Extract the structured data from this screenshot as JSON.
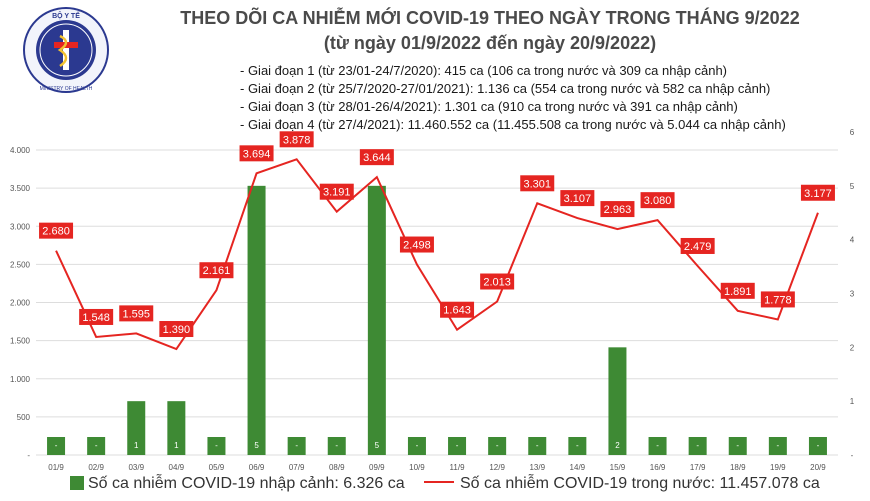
{
  "header": {
    "title": "THEO DÕI CA NHIỄM MỚI COVID-19 THEO NGÀY TRONG THÁNG 9/2022",
    "subtitle": "(từ ngày 01/9/2022 đến ngày 20/9/2022)",
    "phases": [
      "- Giai đoạn 1 (từ 23/01-24/7/2020): 415 ca (106 ca trong nước và 309 ca nhập cảnh)",
      "- Giai đoạn 2 (từ 25/7/2020-27/01/2021): 1.136 ca (554 ca trong nước và 582 ca nhập cảnh)",
      "- Giai đoạn 3 (từ 28/01-26/4/2021): 1.301 ca (910 ca trong nước và 391 ca nhập cảnh)",
      "- Giai đoạn 4 (từ 27/4/2021): 11.460.552 ca (11.455.508 ca trong nước và 5.044 ca nhập cảnh)"
    ]
  },
  "logo": {
    "top_text": "BỘ Y TẾ",
    "bottom_text": "MINISTRY OF HEALTH"
  },
  "legend": {
    "bar_label": "Số ca nhiễm COVID-19 nhập cảnh: 6.326 ca",
    "line_label": "Số ca nhiễm COVID-19 trong nước: 11.457.078 ca"
  },
  "colors": {
    "bar": "#3e8a34",
    "line": "#e52521",
    "label_bg": "#e52521",
    "grid": "#dddddd",
    "axis_text": "#555555"
  },
  "chart_data": {
    "type": "bar+line",
    "categories": [
      "01/9",
      "02/9",
      "03/9",
      "04/9",
      "05/9",
      "06/9",
      "07/9",
      "08/9",
      "09/9",
      "10/9",
      "11/9",
      "12/9",
      "13/9",
      "14/9",
      "15/9",
      "16/9",
      "17/9",
      "18/9",
      "19/9",
      "20/9"
    ],
    "series": [
      {
        "name": "Số ca nhiễm COVID-19 nhập cảnh: 6.326 ca",
        "type": "bar",
        "axis": "right",
        "values": [
          0,
          0,
          1,
          1,
          0,
          5,
          0,
          0,
          5,
          0,
          0,
          0,
          0,
          0,
          2,
          0,
          0,
          0,
          0,
          0
        ],
        "labels": [
          "-",
          "-",
          "1",
          "1",
          "-",
          "5",
          "-",
          "-",
          "5",
          "-",
          "-",
          "-",
          "-",
          "-",
          "2",
          "-",
          "-",
          "-",
          "-",
          "-"
        ]
      },
      {
        "name": "Số ca nhiễm COVID-19 trong nước: 11.457.078 ca",
        "type": "line",
        "axis": "left",
        "values": [
          2680,
          1548,
          1595,
          1390,
          2161,
          3694,
          3878,
          3191,
          3644,
          2498,
          1643,
          2013,
          3301,
          3107,
          2963,
          3080,
          2479,
          1891,
          1778,
          3177
        ],
        "labels": [
          "2.680",
          "1.548",
          "1.595",
          "1.390",
          "2.161",
          "3.694",
          "3.878",
          "3.191",
          "3.644",
          "2.498",
          "1.643",
          "2.013",
          "3.301",
          "3.107",
          "2.963",
          "3.080",
          "2.479",
          "1.891",
          "1.778",
          "3.177"
        ]
      }
    ],
    "y_left": {
      "range": [
        0,
        4000
      ],
      "ticks": [
        "-",
        "500",
        "1.000",
        "1.500",
        "2.000",
        "2.500",
        "3.000",
        "3.500",
        "4.000"
      ]
    },
    "y_right": {
      "range": [
        0,
        6
      ],
      "ticks": [
        "-",
        "1",
        "2",
        "3",
        "4",
        "5",
        "6"
      ]
    },
    "grid": true,
    "legend_position": "bottom"
  }
}
